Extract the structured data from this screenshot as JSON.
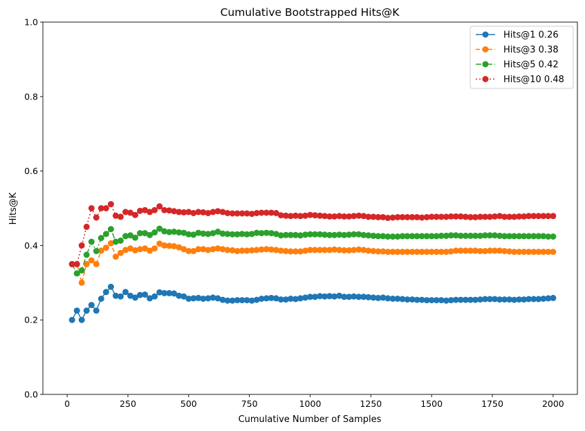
{
  "chart_data": {
    "type": "line",
    "title": "Cumulative Bootstrapped Hits@K",
    "xlabel": "Cumulative Number of Samples",
    "ylabel": "Hits@K",
    "xlim": [
      -100,
      2100
    ],
    "ylim": [
      0,
      1.0
    ],
    "xticks": [
      0,
      250,
      500,
      750,
      1000,
      1250,
      1500,
      1750,
      2000
    ],
    "yticks": [
      0.0,
      0.2,
      0.4,
      0.6,
      0.8,
      1.0
    ],
    "xtick_labels": [
      "0",
      "250",
      "500",
      "750",
      "1000",
      "1250",
      "1500",
      "1750",
      "2000"
    ],
    "ytick_labels": [
      "0.0",
      "0.2",
      "0.4",
      "0.6",
      "0.8",
      "1.0"
    ],
    "grid": false,
    "legend_position": "top-right",
    "x": [
      20,
      40,
      60,
      80,
      100,
      120,
      140,
      160,
      180,
      200,
      220,
      240,
      260,
      280,
      300,
      320,
      340,
      360,
      380,
      400,
      420,
      440,
      460,
      480,
      500,
      520,
      540,
      560,
      580,
      600,
      620,
      640,
      660,
      680,
      700,
      720,
      740,
      760,
      780,
      800,
      820,
      840,
      860,
      880,
      900,
      920,
      940,
      960,
      980,
      1000,
      1020,
      1040,
      1060,
      1080,
      1100,
      1120,
      1140,
      1160,
      1180,
      1200,
      1220,
      1240,
      1260,
      1280,
      1300,
      1320,
      1340,
      1360,
      1380,
      1400,
      1420,
      1440,
      1460,
      1480,
      1500,
      1520,
      1540,
      1560,
      1580,
      1600,
      1620,
      1640,
      1660,
      1680,
      1700,
      1720,
      1740,
      1760,
      1780,
      1800,
      1820,
      1840,
      1860,
      1880,
      1900,
      1920,
      1940,
      1960,
      1980,
      2000
    ],
    "series": [
      {
        "name": "Hits@1 0.26",
        "color": "#1f77b4",
        "linestyle": "solid",
        "values": [
          0.2,
          0.225,
          0.2,
          0.225,
          0.24,
          0.225,
          0.257,
          0.275,
          0.289,
          0.265,
          0.263,
          0.275,
          0.265,
          0.26,
          0.267,
          0.268,
          0.258,
          0.263,
          0.274,
          0.272,
          0.272,
          0.271,
          0.265,
          0.263,
          0.257,
          0.258,
          0.259,
          0.257,
          0.258,
          0.26,
          0.258,
          0.254,
          0.252,
          0.252,
          0.253,
          0.253,
          0.253,
          0.252,
          0.254,
          0.257,
          0.258,
          0.259,
          0.258,
          0.255,
          0.255,
          0.257,
          0.256,
          0.258,
          0.26,
          0.262,
          0.262,
          0.264,
          0.263,
          0.264,
          0.263,
          0.265,
          0.262,
          0.262,
          0.263,
          0.262,
          0.262,
          0.261,
          0.26,
          0.259,
          0.26,
          0.258,
          0.257,
          0.257,
          0.256,
          0.255,
          0.255,
          0.254,
          0.254,
          0.253,
          0.253,
          0.253,
          0.253,
          0.252,
          0.253,
          0.254,
          0.254,
          0.254,
          0.254,
          0.254,
          0.255,
          0.256,
          0.256,
          0.256,
          0.255,
          0.255,
          0.255,
          0.254,
          0.255,
          0.255,
          0.256,
          0.256,
          0.256,
          0.257,
          0.258,
          0.259
        ]
      },
      {
        "name": "Hits@3 0.38",
        "color": "#ff7f0e",
        "linestyle": "dashed",
        "values": [
          0.35,
          0.35,
          0.3,
          0.35,
          0.36,
          0.35,
          0.386,
          0.394,
          0.406,
          0.37,
          0.38,
          0.388,
          0.392,
          0.387,
          0.39,
          0.392,
          0.386,
          0.392,
          0.405,
          0.4,
          0.399,
          0.398,
          0.395,
          0.39,
          0.385,
          0.385,
          0.39,
          0.39,
          0.388,
          0.39,
          0.392,
          0.39,
          0.388,
          0.387,
          0.385,
          0.386,
          0.386,
          0.387,
          0.388,
          0.389,
          0.39,
          0.389,
          0.388,
          0.386,
          0.385,
          0.384,
          0.384,
          0.384,
          0.386,
          0.388,
          0.388,
          0.388,
          0.388,
          0.388,
          0.389,
          0.388,
          0.387,
          0.387,
          0.388,
          0.389,
          0.388,
          0.386,
          0.385,
          0.384,
          0.384,
          0.383,
          0.383,
          0.383,
          0.383,
          0.383,
          0.383,
          0.383,
          0.383,
          0.383,
          0.383,
          0.383,
          0.383,
          0.383,
          0.384,
          0.386,
          0.386,
          0.386,
          0.386,
          0.386,
          0.385,
          0.385,
          0.386,
          0.386,
          0.386,
          0.385,
          0.384,
          0.383,
          0.383,
          0.383,
          0.383,
          0.383,
          0.383,
          0.383,
          0.383,
          0.383
        ]
      },
      {
        "name": "Hits@5 0.42",
        "color": "#2ca02c",
        "linestyle": "dashdot",
        "values": [
          0.35,
          0.325,
          0.333,
          0.375,
          0.41,
          0.385,
          0.42,
          0.431,
          0.444,
          0.41,
          0.413,
          0.425,
          0.427,
          0.421,
          0.433,
          0.433,
          0.428,
          0.435,
          0.445,
          0.438,
          0.436,
          0.437,
          0.435,
          0.434,
          0.43,
          0.429,
          0.434,
          0.432,
          0.431,
          0.433,
          0.437,
          0.432,
          0.431,
          0.43,
          0.43,
          0.431,
          0.43,
          0.431,
          0.434,
          0.433,
          0.434,
          0.433,
          0.431,
          0.427,
          0.428,
          0.428,
          0.428,
          0.427,
          0.429,
          0.43,
          0.43,
          0.43,
          0.429,
          0.428,
          0.428,
          0.429,
          0.428,
          0.429,
          0.43,
          0.43,
          0.428,
          0.427,
          0.426,
          0.425,
          0.425,
          0.424,
          0.424,
          0.424,
          0.425,
          0.425,
          0.425,
          0.425,
          0.425,
          0.425,
          0.425,
          0.425,
          0.426,
          0.426,
          0.427,
          0.427,
          0.426,
          0.426,
          0.426,
          0.426,
          0.426,
          0.427,
          0.427,
          0.427,
          0.426,
          0.425,
          0.425,
          0.425,
          0.425,
          0.425,
          0.425,
          0.425,
          0.425,
          0.425,
          0.424,
          0.424
        ]
      },
      {
        "name": "Hits@10 0.48",
        "color": "#d62728",
        "linestyle": "dotted",
        "values": [
          0.35,
          0.35,
          0.4,
          0.45,
          0.5,
          0.475,
          0.5,
          0.5,
          0.511,
          0.48,
          0.477,
          0.49,
          0.488,
          0.482,
          0.493,
          0.495,
          0.49,
          0.495,
          0.505,
          0.495,
          0.494,
          0.492,
          0.49,
          0.489,
          0.49,
          0.487,
          0.49,
          0.489,
          0.487,
          0.49,
          0.492,
          0.49,
          0.487,
          0.486,
          0.486,
          0.486,
          0.486,
          0.485,
          0.487,
          0.488,
          0.488,
          0.488,
          0.487,
          0.481,
          0.48,
          0.479,
          0.48,
          0.479,
          0.48,
          0.482,
          0.481,
          0.48,
          0.479,
          0.478,
          0.478,
          0.479,
          0.478,
          0.478,
          0.479,
          0.48,
          0.479,
          0.477,
          0.477,
          0.476,
          0.476,
          0.474,
          0.475,
          0.476,
          0.476,
          0.476,
          0.476,
          0.476,
          0.475,
          0.476,
          0.477,
          0.477,
          0.477,
          0.477,
          0.478,
          0.478,
          0.478,
          0.477,
          0.476,
          0.476,
          0.477,
          0.477,
          0.477,
          0.478,
          0.479,
          0.477,
          0.477,
          0.477,
          0.478,
          0.478,
          0.479,
          0.479,
          0.479,
          0.479,
          0.479,
          0.479
        ]
      }
    ]
  }
}
